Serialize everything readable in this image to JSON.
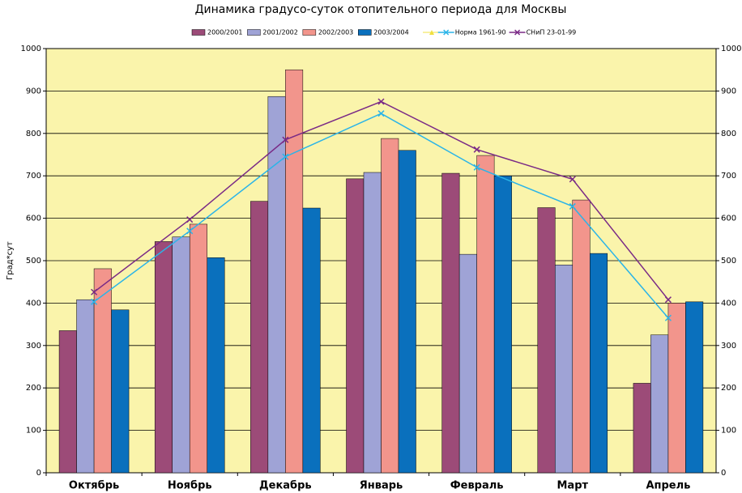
{
  "chart_data": {
    "type": "bar",
    "title": "Динамика градусо-суток отопительного периода для Москвы",
    "y_label": "Град*сут",
    "categories": [
      "Октябрь",
      "Ноябрь",
      "Декабрь",
      "Январь",
      "Февраль",
      "Март",
      "Апрель"
    ],
    "series": [
      {
        "name": "2000/2001",
        "color": "#9c4b78",
        "type": "bar",
        "values": [
          335,
          545,
          640,
          693,
          706,
          625,
          211
        ]
      },
      {
        "name": "2001/2002",
        "color": "#9fa3d6",
        "type": "bar",
        "values": [
          408,
          556,
          887,
          708,
          515,
          490,
          325
        ]
      },
      {
        "name": "2002/2003",
        "color": "#f2958c",
        "type": "bar",
        "values": [
          481,
          586,
          950,
          788,
          748,
          643,
          400
        ]
      },
      {
        "name": "2003/2004",
        "color": "#0a70bd",
        "type": "bar",
        "values": [
          384,
          507,
          624,
          760,
          700,
          517,
          403
        ]
      },
      {
        "name": "Норма 1961-90",
        "color": "#2ab4e8",
        "type": "line",
        "values": [
          403,
          570,
          745,
          847,
          720,
          628,
          365
        ]
      },
      {
        "name": "СНиП 23-01-99",
        "color": "#7a2a86",
        "type": "line",
        "values": [
          426,
          597,
          785,
          875,
          762,
          692,
          408
        ]
      }
    ],
    "ylim": [
      0,
      1000
    ],
    "yticks": [
      0,
      100,
      200,
      300,
      400,
      500,
      600,
      700,
      800,
      900,
      1000
    ],
    "y2lim": [
      0,
      1000
    ],
    "y2ticks": [
      0,
      100,
      200,
      300,
      400,
      500,
      600,
      700,
      800,
      900,
      1000
    ],
    "grid": true,
    "legend": "top"
  }
}
